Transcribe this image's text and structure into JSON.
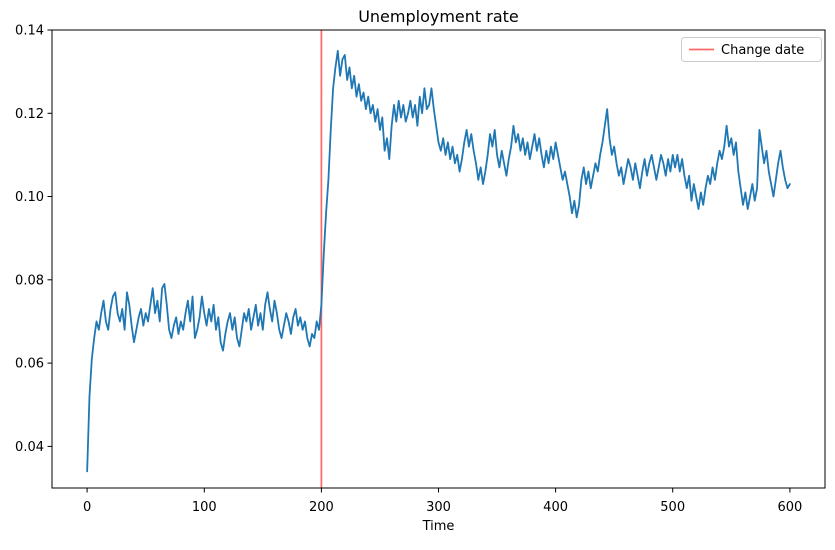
{
  "chart_data": {
    "type": "line",
    "title": "Unemployment rate",
    "xlabel": "Time",
    "ylabel": "",
    "xlim": [
      -30,
      630
    ],
    "ylim": [
      0.03,
      0.14
    ],
    "xticks": [
      0,
      100,
      200,
      300,
      400,
      500,
      600
    ],
    "yticks": [
      0.04,
      0.06,
      0.08,
      0.1,
      0.12,
      0.14
    ],
    "grid": false,
    "background": "#ffffff",
    "legend": {
      "position": "upper right",
      "entries": [
        {
          "label": "Change date",
          "color": "#ff6666",
          "type": "line"
        }
      ]
    },
    "annotations": [
      {
        "type": "vline",
        "x": 200,
        "color": "#ff6666",
        "label": "Change date"
      }
    ],
    "series": [
      {
        "name": "Unemployment rate",
        "color": "#1f77b4",
        "x_start": 0,
        "x_step": 2,
        "y": [
          0.034,
          0.052,
          0.061,
          0.066,
          0.07,
          0.068,
          0.072,
          0.075,
          0.07,
          0.068,
          0.073,
          0.076,
          0.077,
          0.072,
          0.07,
          0.073,
          0.068,
          0.077,
          0.074,
          0.069,
          0.065,
          0.068,
          0.071,
          0.073,
          0.069,
          0.072,
          0.07,
          0.074,
          0.078,
          0.072,
          0.075,
          0.07,
          0.078,
          0.079,
          0.074,
          0.068,
          0.066,
          0.069,
          0.071,
          0.067,
          0.07,
          0.068,
          0.072,
          0.075,
          0.07,
          0.076,
          0.066,
          0.068,
          0.071,
          0.076,
          0.072,
          0.069,
          0.073,
          0.07,
          0.074,
          0.068,
          0.071,
          0.065,
          0.063,
          0.067,
          0.07,
          0.072,
          0.068,
          0.071,
          0.066,
          0.064,
          0.068,
          0.072,
          0.07,
          0.073,
          0.068,
          0.071,
          0.074,
          0.069,
          0.072,
          0.068,
          0.074,
          0.077,
          0.073,
          0.07,
          0.075,
          0.072,
          0.068,
          0.066,
          0.069,
          0.072,
          0.07,
          0.067,
          0.071,
          0.073,
          0.069,
          0.071,
          0.068,
          0.07,
          0.066,
          0.064,
          0.067,
          0.066,
          0.07,
          0.068,
          0.074,
          0.086,
          0.096,
          0.104,
          0.116,
          0.126,
          0.131,
          0.135,
          0.129,
          0.133,
          0.134,
          0.128,
          0.131,
          0.126,
          0.129,
          0.124,
          0.127,
          0.123,
          0.125,
          0.121,
          0.124,
          0.12,
          0.122,
          0.118,
          0.121,
          0.116,
          0.119,
          0.111,
          0.114,
          0.109,
          0.117,
          0.122,
          0.118,
          0.123,
          0.119,
          0.122,
          0.118,
          0.12,
          0.123,
          0.119,
          0.122,
          0.117,
          0.124,
          0.12,
          0.126,
          0.121,
          0.122,
          0.126,
          0.121,
          0.117,
          0.113,
          0.111,
          0.114,
          0.11,
          0.113,
          0.109,
          0.112,
          0.108,
          0.11,
          0.106,
          0.109,
          0.113,
          0.116,
          0.112,
          0.115,
          0.111,
          0.108,
          0.104,
          0.107,
          0.103,
          0.106,
          0.11,
          0.115,
          0.112,
          0.116,
          0.11,
          0.107,
          0.111,
          0.108,
          0.105,
          0.109,
          0.112,
          0.117,
          0.113,
          0.115,
          0.111,
          0.114,
          0.11,
          0.113,
          0.109,
          0.112,
          0.115,
          0.111,
          0.114,
          0.11,
          0.107,
          0.111,
          0.108,
          0.112,
          0.109,
          0.113,
          0.11,
          0.107,
          0.104,
          0.106,
          0.103,
          0.1,
          0.096,
          0.099,
          0.095,
          0.098,
          0.104,
          0.107,
          0.103,
          0.106,
          0.102,
          0.105,
          0.108,
          0.106,
          0.11,
          0.113,
          0.117,
          0.121,
          0.114,
          0.11,
          0.112,
          0.108,
          0.105,
          0.107,
          0.103,
          0.106,
          0.109,
          0.107,
          0.104,
          0.108,
          0.105,
          0.102,
          0.106,
          0.109,
          0.105,
          0.108,
          0.11,
          0.107,
          0.104,
          0.107,
          0.11,
          0.108,
          0.105,
          0.109,
          0.106,
          0.11,
          0.107,
          0.11,
          0.106,
          0.109,
          0.105,
          0.102,
          0.105,
          0.099,
          0.103,
          0.1,
          0.097,
          0.101,
          0.098,
          0.102,
          0.105,
          0.103,
          0.107,
          0.104,
          0.108,
          0.111,
          0.109,
          0.112,
          0.117,
          0.112,
          0.114,
          0.11,
          0.113,
          0.106,
          0.102,
          0.098,
          0.101,
          0.097,
          0.1,
          0.103,
          0.099,
          0.102,
          0.116,
          0.112,
          0.108,
          0.111,
          0.106,
          0.103,
          0.1,
          0.104,
          0.108,
          0.111,
          0.107,
          0.104,
          0.102,
          0.103
        ]
      }
    ]
  }
}
